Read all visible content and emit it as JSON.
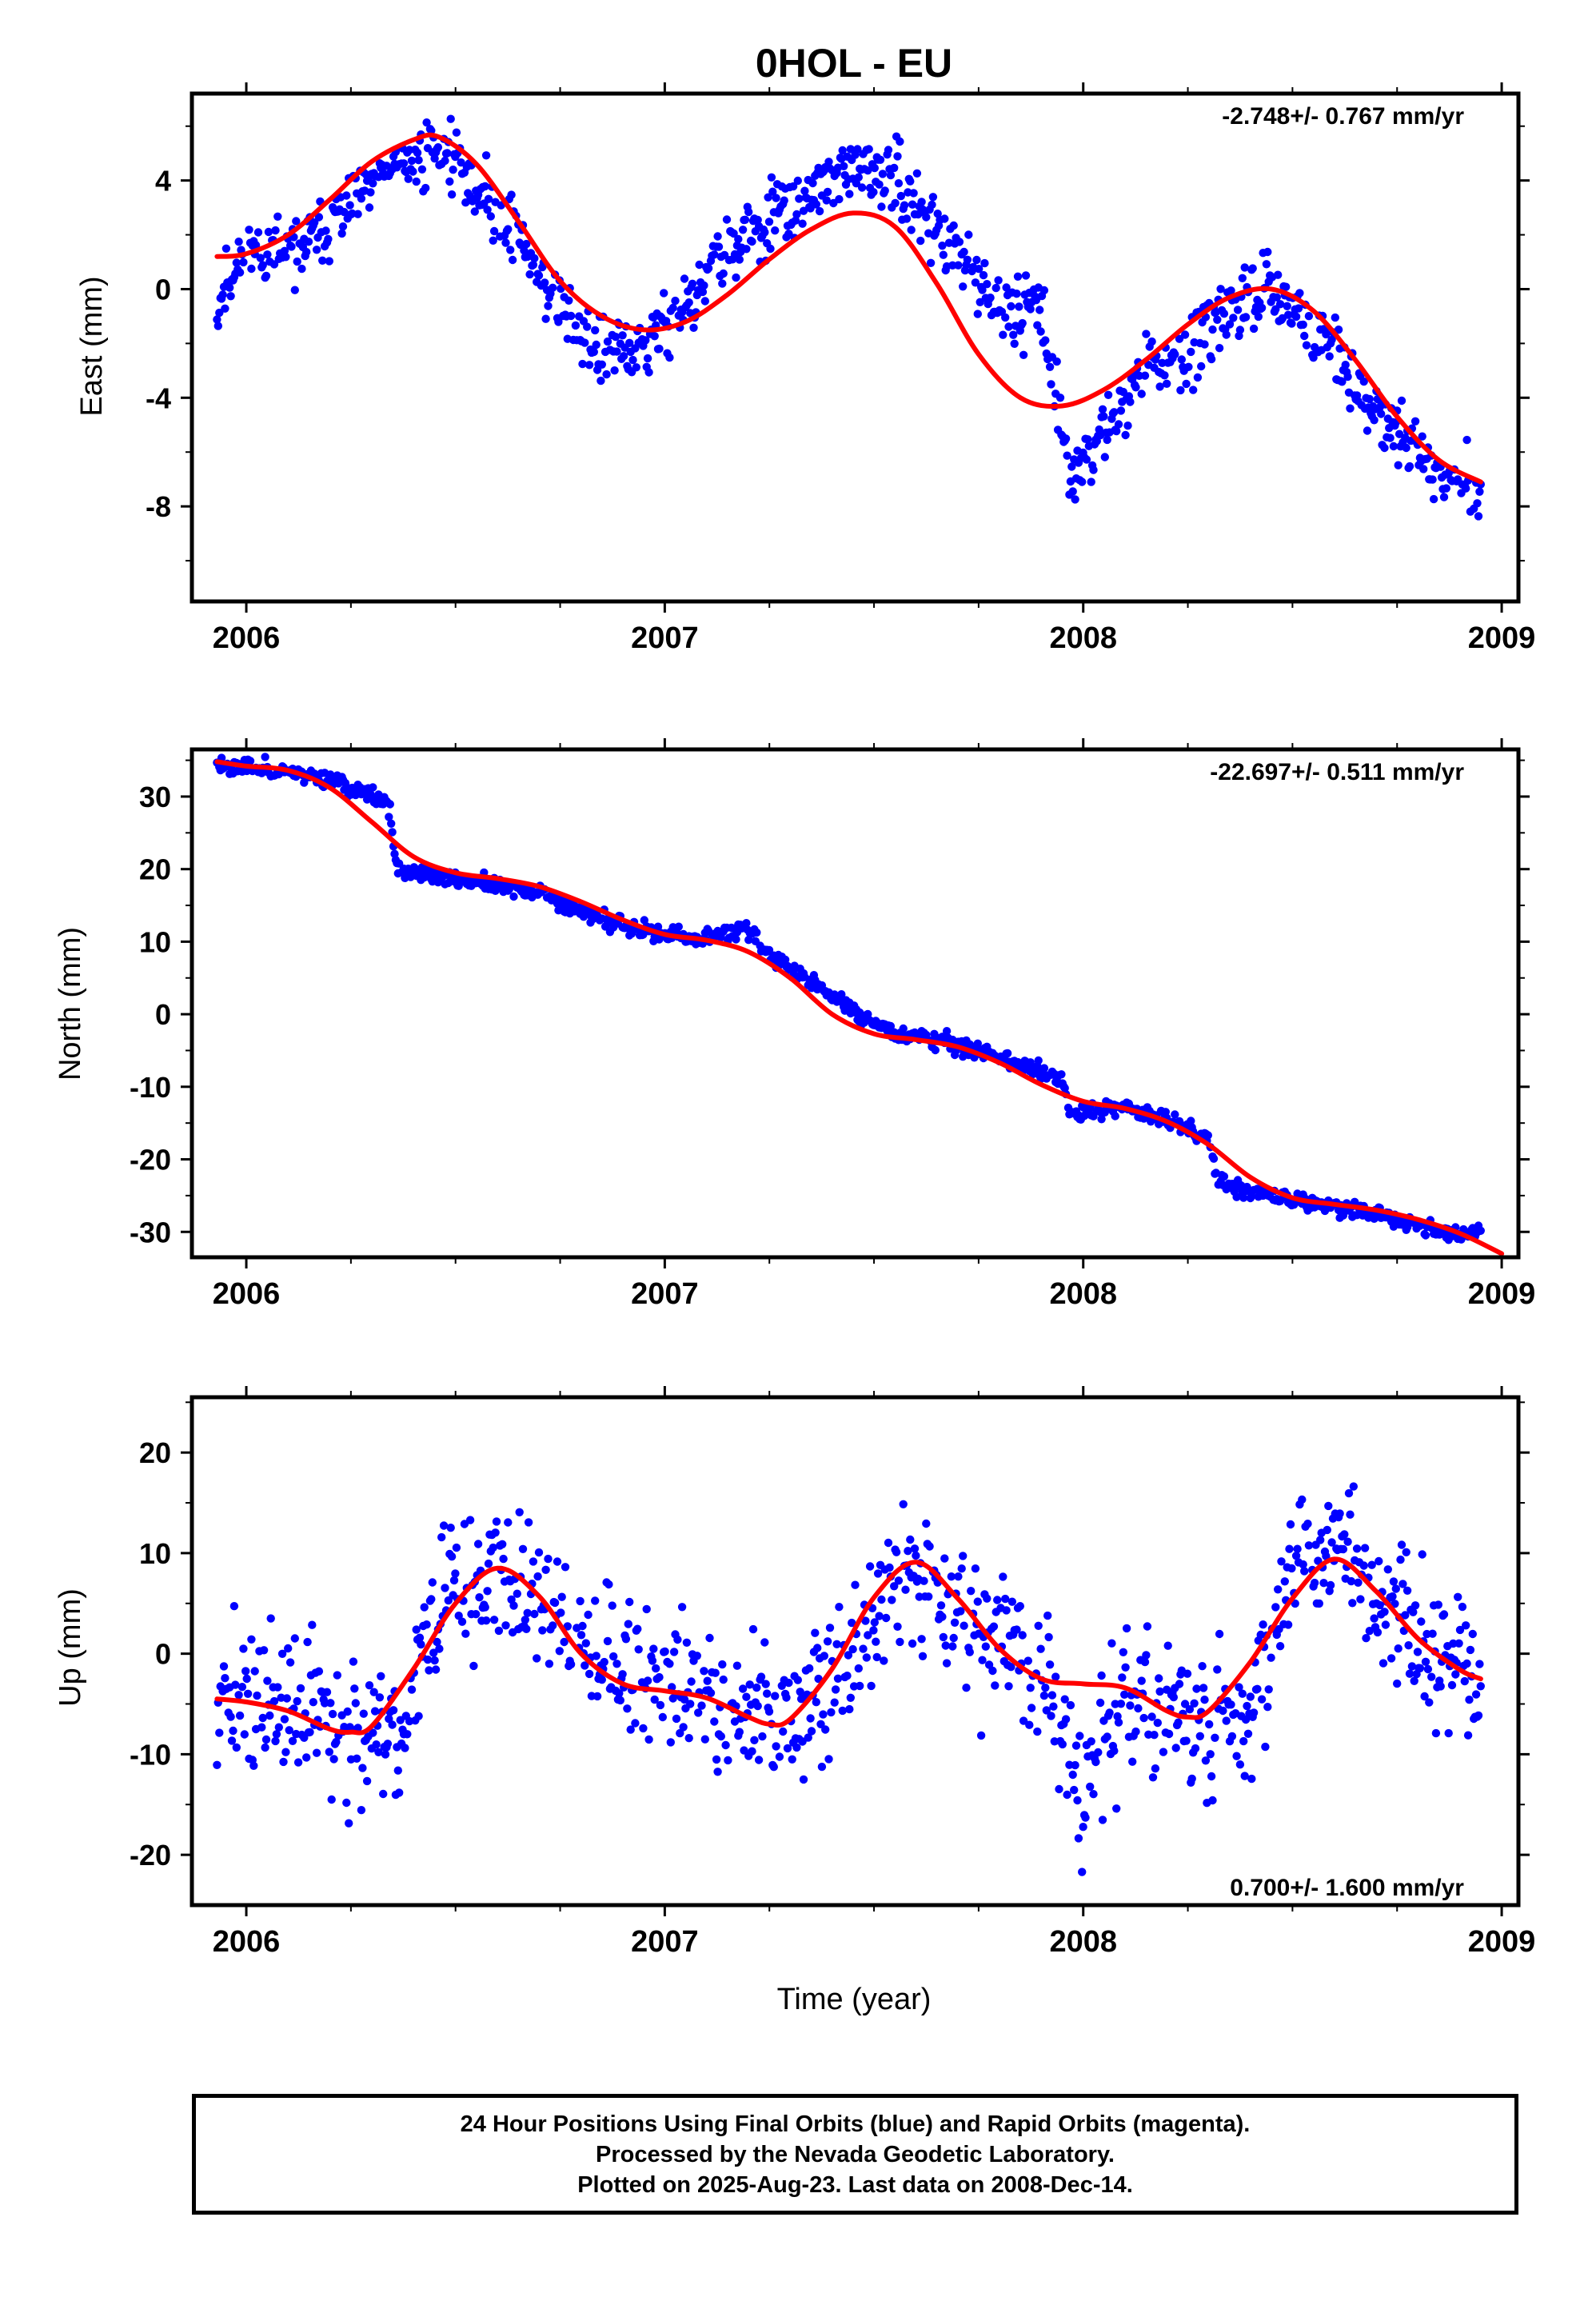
{
  "title": "0HOL - EU",
  "footer": {
    "line1": "24 Hour Positions Using Final Orbits (blue) and Rapid Orbits (magenta).",
    "line2": "Processed by the Nevada Geodetic Laboratory.",
    "line3": "Plotted on 2025-Aug-23. Last data on 2008-Dec-14."
  },
  "colors": {
    "points": "#0000ff",
    "model": "#ff0000",
    "frame": "#000000"
  },
  "chart_data": [
    {
      "type": "scatter",
      "name": "east",
      "ylabel": "East (mm)",
      "xlabel": "",
      "xlim": [
        2005.87,
        2009.04
      ],
      "ylim": [
        -11.5,
        7.2
      ],
      "xticks": [
        2006,
        2007,
        2008,
        2009
      ],
      "yticks": [
        -8,
        -4,
        0,
        4
      ],
      "rate_label": "-2.748+/- 0.767 mm/yr",
      "rate_position": "top-right",
      "x_start": 2005.93,
      "x_end": 2008.95,
      "model": {
        "x": [
          2005.93,
          2006.0,
          2006.1,
          2006.2,
          2006.3,
          2006.4,
          2006.46,
          2006.55,
          2006.65,
          2006.75,
          2006.85,
          2006.95,
          2007.05,
          2007.15,
          2007.25,
          2007.35,
          2007.45,
          2007.55,
          2007.65,
          2007.75,
          2007.85,
          2007.95,
          2008.05,
          2008.15,
          2008.25,
          2008.35,
          2008.45,
          2008.55,
          2008.65,
          2008.75,
          2008.85,
          2008.95
        ],
        "y": [
          1.2,
          1.3,
          2.0,
          3.3,
          4.7,
          5.5,
          5.6,
          4.6,
          2.5,
          0.3,
          -1.0,
          -1.5,
          -1.2,
          -0.2,
          1.1,
          2.2,
          2.8,
          2.3,
          0.2,
          -2.4,
          -4.0,
          -4.3,
          -3.7,
          -2.6,
          -1.3,
          -0.3,
          0.0,
          -0.8,
          -2.6,
          -4.7,
          -6.3,
          -7.1
        ]
      },
      "anchors": {
        "x": [
          2005.93,
          2006.0,
          2006.1,
          2006.2,
          2006.3,
          2006.4,
          2006.47,
          2006.55,
          2006.65,
          2006.75,
          2006.85,
          2006.95,
          2007.05,
          2007.15,
          2007.25,
          2007.35,
          2007.45,
          2007.55,
          2007.65,
          2007.75,
          2007.85,
          2007.9,
          2007.97,
          2008.05,
          2008.15,
          2008.25,
          2008.35,
          2008.45,
          2008.55,
          2008.65,
          2008.75,
          2008.85,
          2008.95
        ],
        "y": [
          -0.5,
          1.5,
          1.2,
          2.3,
          3.8,
          4.8,
          5.2,
          3.7,
          2.0,
          -0.8,
          -2.5,
          -2.0,
          -0.6,
          1.3,
          2.5,
          3.5,
          4.5,
          4.0,
          2.2,
          0.0,
          -0.8,
          -0.5,
          -7.0,
          -5.2,
          -3.0,
          -2.5,
          -0.9,
          0.3,
          -1.5,
          -3.3,
          -5.4,
          -6.8,
          -7.3
        ]
      },
      "noise_sd": 0.85,
      "seed": 11
    },
    {
      "type": "scatter",
      "name": "north",
      "ylabel": "North (mm)",
      "xlabel": "",
      "xlim": [
        2005.87,
        2009.04
      ],
      "ylim": [
        -33.5,
        36.5
      ],
      "xticks": [
        2006,
        2007,
        2008,
        2009
      ],
      "yticks": [
        -30,
        -20,
        -10,
        0,
        10,
        20,
        30
      ],
      "rate_label": "-22.697+/- 0.511 mm/yr",
      "rate_position": "top-right",
      "x_start": 2005.93,
      "x_end": 2008.95,
      "model": {
        "x": [
          2005.93,
          2006.0,
          2006.1,
          2006.2,
          2006.3,
          2006.4,
          2006.5,
          2006.6,
          2006.7,
          2006.8,
          2006.9,
          2007.0,
          2007.1,
          2007.2,
          2007.3,
          2007.4,
          2007.5,
          2007.6,
          2007.7,
          2007.8,
          2007.9,
          2008.0,
          2008.1,
          2008.2,
          2008.3,
          2008.4,
          2008.5,
          2008.6,
          2008.7,
          2008.8,
          2008.9,
          2009.0
        ],
        "y": [
          34.8,
          34.2,
          33.6,
          31.2,
          26.5,
          21.7,
          19.5,
          18.7,
          17.6,
          15.5,
          13.0,
          11.0,
          10.2,
          8.6,
          5.0,
          0.0,
          -2.7,
          -3.5,
          -4.5,
          -6.7,
          -9.7,
          -12.0,
          -13.0,
          -14.8,
          -18.0,
          -22.5,
          -25.3,
          -26.2,
          -27.0,
          -28.3,
          -30.2,
          -33.0
        ]
      },
      "anchors": {
        "x": [
          2005.93,
          2006.0,
          2006.1,
          2006.2,
          2006.34,
          2006.36,
          2006.5,
          2006.6,
          2006.7,
          2006.8,
          2006.9,
          2007.0,
          2007.1,
          2007.2,
          2007.25,
          2007.35,
          2007.45,
          2007.55,
          2007.65,
          2007.75,
          2007.85,
          2007.95,
          2007.97,
          2008.1,
          2008.2,
          2008.3,
          2008.32,
          2008.4,
          2008.5,
          2008.6,
          2008.7,
          2008.8,
          2008.9,
          2008.95
        ],
        "y": [
          34.5,
          34.0,
          33.5,
          32.5,
          29.0,
          20.0,
          18.5,
          17.8,
          16.5,
          14.5,
          12.0,
          11.0,
          10.5,
          12.0,
          8.0,
          4.5,
          0.5,
          -2.5,
          -3.5,
          -5.0,
          -7.0,
          -9.0,
          -14.0,
          -13.0,
          -14.5,
          -17.0,
          -23.0,
          -24.5,
          -25.5,
          -26.5,
          -27.5,
          -29.0,
          -30.5,
          -29.5
        ]
      },
      "noise_sd": 0.8,
      "seed": 23
    },
    {
      "type": "scatter",
      "name": "up",
      "ylabel": "Up (mm)",
      "xlabel": "Time (year)",
      "xlim": [
        2005.87,
        2009.04
      ],
      "ylim": [
        -25.0,
        25.5
      ],
      "xticks": [
        2006,
        2007,
        2008,
        2009
      ],
      "yticks": [
        -20,
        -10,
        0,
        10,
        20
      ],
      "rate_label": "0.700+/- 1.600 mm/yr",
      "rate_position": "bottom-right",
      "x_start": 2005.93,
      "x_end": 2008.95,
      "model": {
        "x": [
          2005.93,
          2006.0,
          2006.1,
          2006.2,
          2006.25,
          2006.3,
          2006.4,
          2006.5,
          2006.6,
          2006.7,
          2006.8,
          2006.9,
          2007.0,
          2007.1,
          2007.2,
          2007.25,
          2007.3,
          2007.4,
          2007.5,
          2007.6,
          2007.7,
          2007.8,
          2007.9,
          2008.0,
          2008.1,
          2008.2,
          2008.25,
          2008.3,
          2008.4,
          2008.5,
          2008.6,
          2008.7,
          2008.8,
          2008.9,
          2008.95
        ],
        "y": [
          -4.5,
          -4.8,
          -5.7,
          -7.5,
          -7.8,
          -7.2,
          -1.5,
          5.0,
          8.5,
          5.7,
          0.0,
          -3.0,
          -3.7,
          -4.4,
          -6.3,
          -7.0,
          -6.5,
          -1.5,
          5.6,
          9.1,
          5.5,
          0.5,
          -2.5,
          -3.0,
          -3.4,
          -5.7,
          -6.3,
          -5.7,
          -0.8,
          5.5,
          9.4,
          6.2,
          1.5,
          -1.6,
          -2.5
        ]
      },
      "anchors": {
        "x": [
          2005.93,
          2006.1,
          2006.25,
          2006.35,
          2006.45,
          2006.6,
          2006.75,
          2006.9,
          2007.0,
          2007.15,
          2007.25,
          2007.4,
          2007.6,
          2007.75,
          2007.9,
          2008.0,
          2008.1,
          2008.25,
          2008.4,
          2008.5,
          2008.6,
          2008.75,
          2008.85,
          2008.95
        ],
        "y": [
          -4.0,
          -6.0,
          -7.0,
          -10.0,
          4.0,
          9.0,
          4.0,
          -2.0,
          -3.0,
          -5.0,
          -6.0,
          -3.0,
          9.0,
          3.0,
          -2.0,
          -14.0,
          -4.0,
          -7.0,
          -5.0,
          8.0,
          10.0,
          4.0,
          0.0,
          -3.0
        ]
      },
      "noise_sd": 5.0,
      "seed": 37
    }
  ]
}
